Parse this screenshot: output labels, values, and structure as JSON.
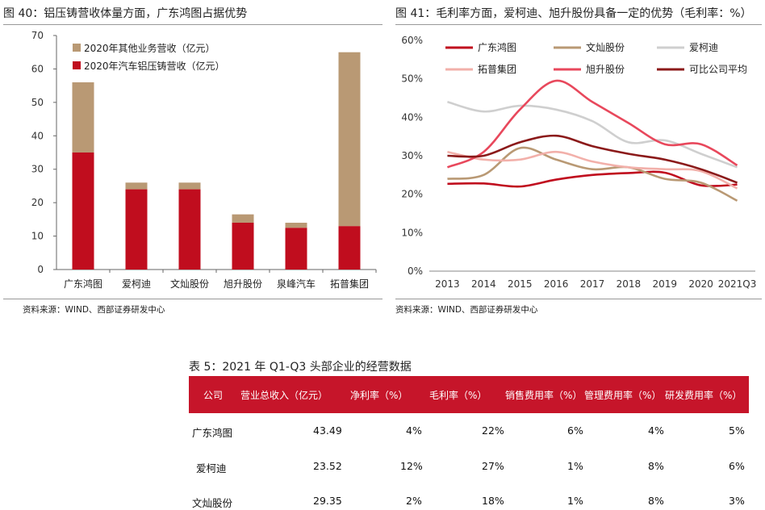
{
  "fig40": {
    "title": "图 40：铝压铸营收体量方面，广东鸿图占据优势",
    "source": "资料来源：WIND、西部证券研发中心"
  },
  "fig41": {
    "title": "图 41：毛利率方面，爱柯迪、旭升股份具备一定的优势（毛利率：%）",
    "source": "资料来源：WIND、西部证券研发中心"
  },
  "table5": {
    "title": "表 5：2021 年 Q1-Q3 头部企业的经营数据",
    "headers": [
      "公司",
      "营业总收入（亿元）",
      "净利率（%）",
      "毛利率（%）",
      "销售费用率（%）",
      "管理费用率（%）",
      "研发费用率（%）"
    ],
    "rows": [
      [
        "广东鸿图",
        "43.49",
        "4%",
        "22%",
        "6%",
        "4%",
        "5%"
      ],
      [
        "爱柯迪",
        "23.52",
        "12%",
        "27%",
        "1%",
        "8%",
        "6%"
      ],
      [
        "文灿股份",
        "29.35",
        "2%",
        "18%",
        "1%",
        "8%",
        "3%"
      ]
    ]
  },
  "chart_data": [
    {
      "type": "bar",
      "stacked": true,
      "categories": [
        "广东鸿图",
        "爱柯迪",
        "文灿股份",
        "旭升股份",
        "泉峰汽车",
        "拓普集团"
      ],
      "series": [
        {
          "name": "2020年汽车铝压铸营收（亿元）",
          "color": "#c00d1e",
          "values": [
            35,
            24,
            24,
            14,
            12.5,
            13
          ]
        },
        {
          "name": "2020年其他业务营收（亿元）",
          "color": "#b99974",
          "values": [
            21,
            2,
            2,
            2.5,
            1.5,
            52
          ]
        }
      ],
      "legend_order": [
        "2020年其他业务营收（亿元）",
        "2020年汽车铝压铸营收（亿元）"
      ],
      "ylim": [
        0,
        70
      ],
      "yticks": [
        0,
        10,
        20,
        30,
        40,
        50,
        60,
        70
      ],
      "legend": "top-left",
      "grid": false
    },
    {
      "type": "line",
      "x": [
        "2013",
        "2014",
        "2015",
        "2016",
        "2017",
        "2018",
        "2019",
        "2020",
        "2021Q3"
      ],
      "ylim": [
        0,
        60
      ],
      "yticks": [
        "0%",
        "10%",
        "20%",
        "30%",
        "40%",
        "50%",
        "60%"
      ],
      "grid": false,
      "legend": "top",
      "series": [
        {
          "name": "广东鸿图",
          "color": "#c00d1e",
          "values": [
            22.7,
            22.8,
            22.0,
            23.8,
            25.0,
            25.5,
            25.6,
            22.3,
            22.5
          ]
        },
        {
          "name": "文灿股份",
          "color": "#b99974",
          "values": [
            24.0,
            25.0,
            32.0,
            29.0,
            26.5,
            27.0,
            24.0,
            23.0,
            18.3
          ]
        },
        {
          "name": "爱柯迪",
          "color": "#cfcfcf",
          "values": [
            44.0,
            41.5,
            43.0,
            42.0,
            39.0,
            33.5,
            34.0,
            30.5,
            27.0
          ]
        },
        {
          "name": "拓普集团",
          "color": "#f2b0aa",
          "values": [
            31.0,
            29.0,
            29.0,
            31.0,
            28.5,
            27.0,
            26.5,
            26.0,
            21.5
          ]
        },
        {
          "name": "旭升股份",
          "color": "#e8485c",
          "values": [
            27.0,
            31.0,
            42.0,
            49.5,
            44.0,
            38.5,
            33.0,
            33.0,
            27.5
          ]
        },
        {
          "name": "可比公司平均",
          "color": "#8b1a1a",
          "values": [
            30.0,
            30.0,
            33.5,
            35.2,
            32.5,
            30.5,
            29.0,
            26.5,
            23.0
          ]
        }
      ]
    }
  ]
}
